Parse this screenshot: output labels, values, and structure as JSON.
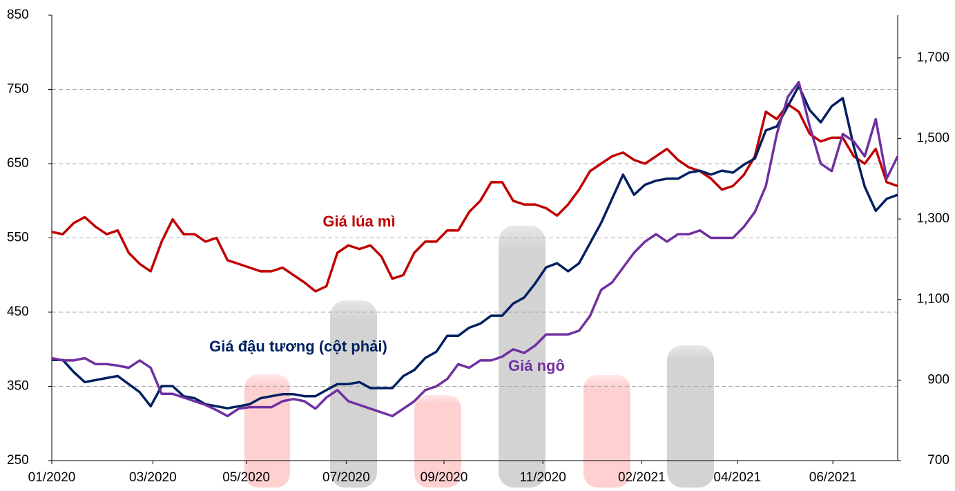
{
  "chart_data": {
    "type": "line",
    "annotations": [
      {
        "text": "Giá lúa mì",
        "color": "#c00000"
      },
      {
        "text": "Giá đậu tương (cột phải)",
        "color": "#002060"
      },
      {
        "text": "Giá ngô",
        "color": "#7030a0"
      }
    ],
    "x": [
      0,
      1,
      2,
      3,
      4,
      5,
      6,
      7,
      8,
      9,
      10,
      11,
      12,
      13,
      14,
      15,
      16,
      17,
      18,
      19,
      20,
      21,
      22,
      23,
      24,
      25,
      26,
      27,
      28,
      29,
      30,
      31,
      32,
      33,
      34,
      35,
      36,
      37,
      38,
      39,
      40,
      41,
      42,
      43,
      44,
      45,
      46,
      47,
      48,
      49,
      50,
      51,
      52,
      53,
      54,
      55,
      56,
      57,
      58,
      59,
      60,
      61,
      62,
      63,
      64,
      65,
      66,
      67,
      68,
      69,
      70,
      71,
      72,
      73,
      74,
      75,
      76,
      77
    ],
    "xlim": [
      0,
      77
    ],
    "xticks": [
      {
        "value": 0,
        "label": "01/2020"
      },
      {
        "value": 9.2,
        "label": "03/2020"
      },
      {
        "value": 17.7,
        "label": "05/2020"
      },
      {
        "value": 26.8,
        "label": "07/2020"
      },
      {
        "value": 35.7,
        "label": "09/2020"
      },
      {
        "value": 44.7,
        "label": "11/2020"
      },
      {
        "value": 53.7,
        "label": "02/2021"
      },
      {
        "value": 62.4,
        "label": "04/2021"
      },
      {
        "value": 71.1,
        "label": "06/2021"
      }
    ],
    "ylim": [
      250,
      850
    ],
    "yticks": [
      250,
      350,
      450,
      550,
      650,
      750,
      850
    ],
    "y2lim": [
      700,
      1806
    ],
    "y2ticks": [
      700,
      900,
      {
        "value": 1100,
        "label": "1,100"
      },
      {
        "value": 1300,
        "label": "1,300"
      },
      {
        "value": 1500,
        "label": "1,500"
      },
      {
        "value": 1700,
        "label": "1,700"
      }
    ],
    "grid": true,
    "series": [
      {
        "name": "Giá lúa mì",
        "color": "#c00000",
        "values": [
          558,
          555,
          570,
          578,
          565,
          555,
          560,
          530,
          515,
          505,
          545,
          575,
          555,
          555,
          545,
          550,
          520,
          515,
          510,
          505,
          505,
          510,
          500,
          490,
          478,
          485,
          530,
          540,
          535,
          540,
          525,
          495,
          500,
          530,
          545,
          545,
          560,
          560,
          585,
          600,
          625,
          625,
          600,
          595,
          595,
          590,
          580,
          595,
          615,
          640,
          650,
          660,
          665,
          655,
          650,
          660,
          670,
          655,
          645,
          640,
          630,
          615,
          620,
          635,
          660,
          720,
          710,
          730,
          720,
          690,
          680,
          685,
          685,
          660,
          650,
          670,
          625,
          620
        ]
      },
      {
        "name": "Giá ngô",
        "color": "#7030a0",
        "values": [
          388,
          385,
          385,
          388,
          380,
          380,
          378,
          375,
          385,
          375,
          340,
          340,
          335,
          330,
          325,
          318,
          310,
          320,
          322,
          322,
          322,
          330,
          333,
          330,
          320,
          335,
          345,
          330,
          325,
          320,
          315,
          310,
          320,
          330,
          345,
          350,
          360,
          380,
          375,
          385,
          385,
          390,
          400,
          395,
          405,
          420,
          420,
          420,
          425,
          445,
          480,
          490,
          510,
          530,
          545,
          555,
          545,
          555,
          555,
          560,
          550,
          550,
          550,
          565,
          585,
          620,
          690,
          740,
          760,
          700,
          650,
          640,
          690,
          680,
          660,
          710,
          630,
          660
        ]
      },
      {
        "name": "Giá đậu tương (cột phải)",
        "color": "#002060",
        "axis": "y2",
        "values": [
          950,
          950,
          920,
          895,
          900,
          905,
          910,
          890,
          870,
          835,
          885,
          885,
          860,
          855,
          840,
          835,
          830,
          835,
          840,
          855,
          860,
          865,
          865,
          860,
          860,
          875,
          890,
          890,
          895,
          880,
          880,
          880,
          910,
          925,
          955,
          970,
          1010,
          1010,
          1030,
          1040,
          1060,
          1060,
          1090,
          1105,
          1140,
          1180,
          1190,
          1170,
          1190,
          1240,
          1290,
          1350,
          1410,
          1360,
          1385,
          1395,
          1400,
          1400,
          1415,
          1420,
          1410,
          1420,
          1415,
          1435,
          1450,
          1520,
          1530,
          1580,
          1630,
          1570,
          1540,
          1580,
          1600,
          1480,
          1380,
          1320,
          1350,
          1360
        ]
      }
    ]
  }
}
